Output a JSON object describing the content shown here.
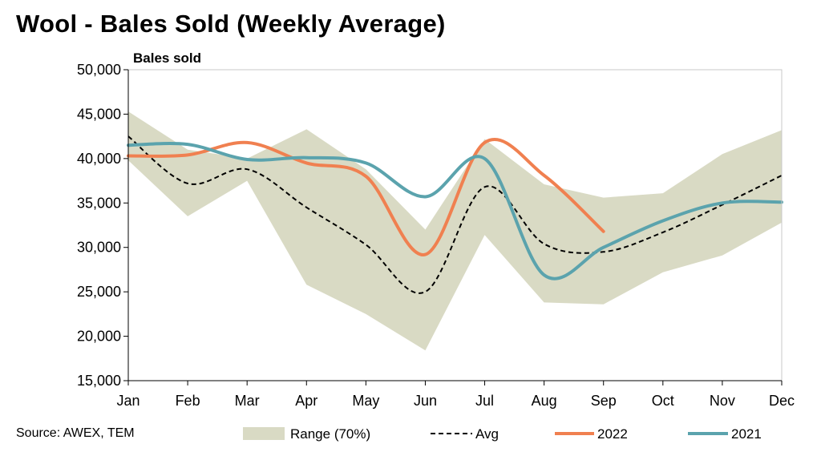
{
  "chart_data": {
    "type": "line",
    "title": "Wool - Bales Sold (Weekly Average)",
    "ylabel": "Bales sold",
    "xlabel": "",
    "categories": [
      "Jan",
      "Feb",
      "Mar",
      "Apr",
      "May",
      "Jun",
      "Jul",
      "Aug",
      "Sep",
      "Oct",
      "Nov",
      "Dec"
    ],
    "ylim": [
      15000,
      50000
    ],
    "yticks": [
      15000,
      20000,
      25000,
      30000,
      35000,
      40000,
      45000,
      50000
    ],
    "ytick_labels": [
      "15,000",
      "20,000",
      "25,000",
      "30,000",
      "35,000",
      "40,000",
      "45,000",
      "50,000"
    ],
    "grid": false,
    "range_band": {
      "name": "Range (70%)",
      "color": "#d9dac4",
      "upper": [
        45300,
        41000,
        40000,
        43300,
        38800,
        32000,
        42200,
        37100,
        35600,
        36100,
        40500,
        43200
      ],
      "lower": [
        39800,
        33500,
        37500,
        25800,
        22500,
        18400,
        31400,
        23800,
        23600,
        27200,
        29100,
        32800
      ]
    },
    "series": [
      {
        "name": "Avg",
        "color": "#000000",
        "style": "dashed",
        "values": [
          42500,
          37200,
          38800,
          34500,
          30300,
          25000,
          36800,
          30400,
          29500,
          31700,
          34800,
          38100
        ]
      },
      {
        "name": "2022",
        "color": "#f08050",
        "style": "solid",
        "values": [
          40300,
          40400,
          41800,
          39500,
          38000,
          29200,
          41800,
          38100,
          31800,
          null,
          null,
          null
        ]
      },
      {
        "name": "2021",
        "color": "#5ba3ad",
        "style": "solid",
        "values": [
          41500,
          41600,
          39900,
          40100,
          39500,
          35700,
          40000,
          26900,
          30000,
          33000,
          35000,
          35100
        ]
      }
    ],
    "legend_position": "bottom"
  },
  "source_note": "Source: AWEX, TEM"
}
